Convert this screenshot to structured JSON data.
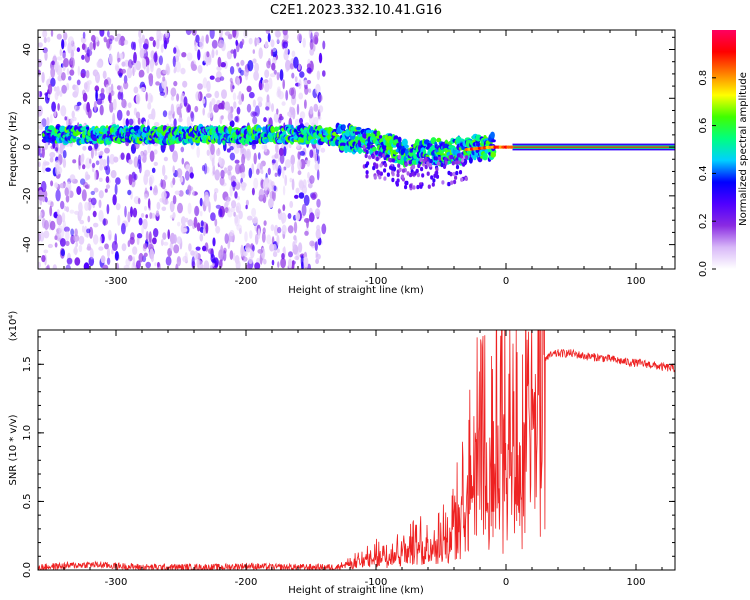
{
  "title": "C2E1.2023.332.10.41.G16",
  "chart_data": [
    {
      "type": "heatmap",
      "title": "C2E1.2023.332.10.41.G16",
      "xlabel": "Height of straight line (km)",
      "ylabel": "Frequency (Hz)",
      "xlim": [
        -360,
        130
      ],
      "ylim": [
        -50,
        48
      ],
      "xticks": [
        -300,
        -200,
        -100,
        0,
        100
      ],
      "yticks": [
        -40,
        -20,
        0,
        20,
        40
      ],
      "colorbar": {
        "label": "Normalized spectral amplitude",
        "range": [
          0.0,
          1.0
        ],
        "ticks": [
          0.0,
          0.2,
          0.4,
          0.6,
          0.8
        ],
        "colors": [
          "#ffffff",
          "#d8b8f8",
          "#8a2be2",
          "#5000ff",
          "#0000ff",
          "#00d0ff",
          "#00ff80",
          "#40ff00",
          "#ffff00",
          "#ff8000",
          "#ff0000",
          "#ff0060"
        ]
      },
      "ridge": {
        "description": "spectral peak frequency vs height",
        "x": [
          -350,
          -300,
          -250,
          -200,
          -150,
          -125,
          -100,
          -75,
          -50,
          -30,
          -10,
          0,
          10,
          60,
          130
        ],
        "frequency": [
          5,
          5,
          5,
          5,
          5,
          4,
          1,
          -3,
          -2,
          -1,
          0,
          0,
          0,
          0,
          0
        ]
      },
      "scatter_region_x": [
        -360,
        -140
      ]
    },
    {
      "type": "line",
      "xlabel": "Height of straight line (km)",
      "ylabel": "SNR (10 * v/v)",
      "y_scale_label": "(x10⁴)",
      "xlim": [
        -360,
        130
      ],
      "ylim": [
        0.0,
        1.75
      ],
      "xticks": [
        -300,
        -200,
        -100,
        0,
        100
      ],
      "yticks": [
        0.0,
        0.5,
        1.0,
        1.5
      ],
      "ytick_labels": [
        "0.0",
        "0.5",
        "1.0",
        "1.5"
      ],
      "color": "#ee2222",
      "series": [
        {
          "name": "SNR",
          "x": [
            -360,
            -340,
            -320,
            -300,
            -280,
            -260,
            -240,
            -220,
            -200,
            -180,
            -160,
            -140,
            -130,
            -120,
            -110,
            -100,
            -90,
            -80,
            -70,
            -60,
            -50,
            -45,
            -40,
            -35,
            -30,
            -25,
            -20,
            -18,
            -15,
            -10,
            -5,
            0,
            5,
            10,
            15,
            20,
            25,
            30,
            40,
            50,
            60,
            70,
            80,
            90,
            100,
            110,
            120,
            130
          ],
          "y": [
            0.02,
            0.03,
            0.04,
            0.03,
            0.02,
            0.02,
            0.02,
            0.02,
            0.03,
            0.02,
            0.02,
            0.02,
            0.02,
            0.06,
            0.08,
            0.12,
            0.15,
            0.17,
            0.2,
            0.22,
            0.28,
            0.3,
            0.36,
            0.5,
            0.7,
            0.85,
            1.05,
            1.2,
            0.95,
            1.05,
            1.1,
            1.08,
            1.02,
            1.0,
            1.3,
            1.43,
            1.5,
            1.55,
            1.58,
            1.58,
            1.56,
            1.55,
            1.54,
            1.52,
            1.51,
            1.5,
            1.48,
            1.47
          ]
        }
      ]
    }
  ]
}
